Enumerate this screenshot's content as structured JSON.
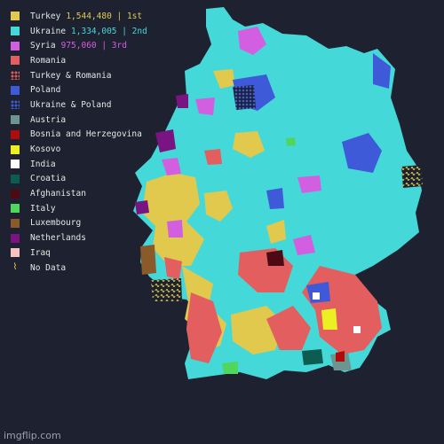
{
  "legend": [
    {
      "label": "Turkey",
      "stat": "1,544,480 | 1st",
      "color": "#e1c94e",
      "swatch": "solid"
    },
    {
      "label": "Ukraine",
      "stat": "1,334,005 | 2nd",
      "color": "#45d8d8",
      "swatch": "solid"
    },
    {
      "label": "Syria",
      "stat": "975,060 | 3rd",
      "color": "#d15fe0",
      "swatch": "solid"
    },
    {
      "label": "Romania",
      "stat": "",
      "color": "#e35e5e",
      "swatch": "solid"
    },
    {
      "label": "Turkey & Romania",
      "stat": "",
      "color": "#e35e5e",
      "swatch": "dots-red"
    },
    {
      "label": "Poland",
      "stat": "",
      "color": "#3f5ad8",
      "swatch": "solid"
    },
    {
      "label": "Ukraine & Poland",
      "stat": "",
      "color": "#3f5ad8",
      "swatch": "dots-blue"
    },
    {
      "label": "Austria",
      "stat": "",
      "color": "#6e9490",
      "swatch": "solid"
    },
    {
      "label": "Bosnia and Herzegovina",
      "stat": "",
      "color": "#b00b0b",
      "swatch": "solid"
    },
    {
      "label": "Kosovo",
      "stat": "",
      "color": "#ecf023",
      "swatch": "solid"
    },
    {
      "label": "India",
      "stat": "",
      "color": "#ffffff",
      "swatch": "solid"
    },
    {
      "label": "Croatia",
      "stat": "",
      "color": "#0d5c52",
      "swatch": "solid"
    },
    {
      "label": "Afghanistan",
      "stat": "",
      "color": "#4d0a12",
      "swatch": "solid"
    },
    {
      "label": "Italy",
      "stat": "",
      "color": "#4fd65b",
      "swatch": "solid"
    },
    {
      "label": "Luxembourg",
      "stat": "",
      "color": "#8a5a2a",
      "swatch": "solid"
    },
    {
      "label": "Netherlands",
      "stat": "",
      "color": "#7a1483",
      "swatch": "solid"
    },
    {
      "label": "Iraq",
      "stat": "",
      "color": "#f7c1c1",
      "swatch": "solid"
    },
    {
      "label": "No Data",
      "stat": "",
      "color": "#e8d44d",
      "swatch": "nodata"
    }
  ],
  "stat_colors": {
    "Turkey": "#e1c94e",
    "Ukraine": "#45d8d8",
    "Syria": "#d15fe0"
  },
  "nodata_glyph": "⌇",
  "watermark": "imgflip.com"
}
